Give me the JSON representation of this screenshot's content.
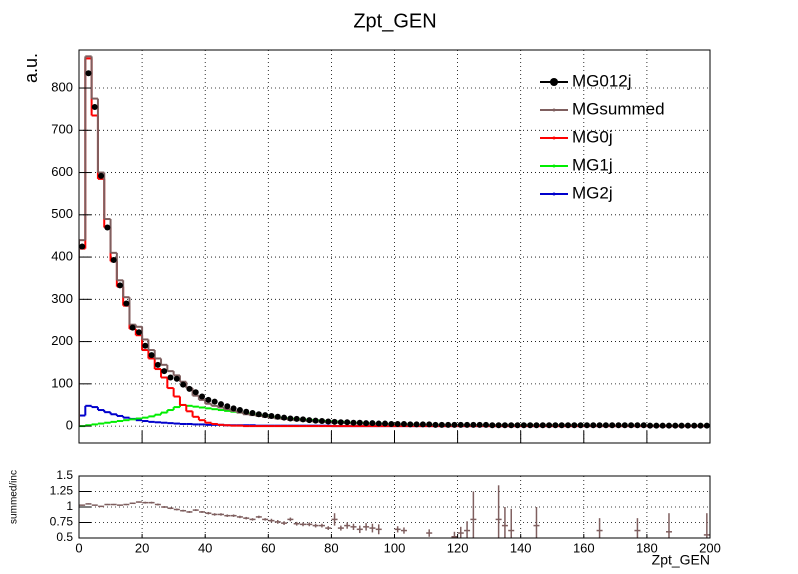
{
  "chart_data": [
    {
      "type": "histogram",
      "title": "Zpt_GEN",
      "y_label": "a.u.",
      "bins": [
        0,
        2,
        4,
        6,
        8,
        10,
        12,
        14,
        16,
        18,
        20,
        22,
        24,
        26,
        28,
        30,
        32,
        34,
        36,
        38,
        40,
        42,
        44,
        46,
        48,
        50,
        52,
        54,
        56,
        58,
        60,
        62,
        64,
        66,
        68,
        70,
        72,
        74,
        76,
        78,
        80,
        82,
        84,
        86,
        88,
        90,
        92,
        94,
        96,
        98,
        100,
        102,
        104,
        106,
        108,
        110,
        112,
        114,
        116,
        118,
        120,
        122,
        124,
        126,
        128,
        130,
        132,
        134,
        136,
        138,
        140,
        142,
        144,
        146,
        148,
        150,
        152,
        154,
        156,
        158,
        160,
        162,
        164,
        166,
        168,
        170,
        172,
        174,
        176,
        178,
        180,
        182,
        184,
        186,
        188,
        190,
        192,
        194,
        196,
        198,
        200
      ],
      "series": [
        {
          "name": "MG012j",
          "color": "#000000",
          "style": "points",
          "values": [
            425,
            835,
            755,
            592,
            470,
            393,
            333,
            290,
            233,
            222,
            190,
            168,
            145,
            130,
            115,
            112,
            98,
            88,
            80,
            70,
            62,
            58,
            52,
            47,
            42,
            38,
            34,
            31,
            28,
            26,
            24,
            22,
            20,
            18,
            17,
            16,
            14,
            13,
            12,
            11,
            10,
            9,
            9,
            8,
            8,
            7,
            7,
            6,
            6,
            5,
            5,
            5,
            4,
            4,
            4,
            4,
            3,
            3,
            3,
            3,
            3,
            3,
            3,
            3,
            3,
            2,
            2,
            2,
            2,
            2,
            2,
            2,
            2,
            2,
            2,
            2,
            2,
            2,
            2,
            2,
            2,
            2,
            2,
            2,
            2,
            2,
            2,
            2,
            2,
            2,
            1,
            1,
            1,
            1,
            1,
            1,
            1,
            1,
            1,
            1
          ]
        },
        {
          "name": "MGsummed",
          "color": "#7f5f5f",
          "style": "step",
          "values": [
            440,
            875,
            775,
            600,
            490,
            410,
            345,
            305,
            240,
            235,
            205,
            180,
            160,
            145,
            130,
            120,
            105,
            90,
            72,
            62,
            53,
            48,
            44,
            40,
            36,
            32,
            28,
            26,
            24,
            22,
            20,
            18,
            17,
            15,
            14,
            13,
            12,
            11,
            10,
            9,
            8,
            8,
            7,
            6,
            6,
            5,
            5,
            5,
            4,
            4,
            4,
            4,
            3,
            3,
            3,
            3,
            3,
            3,
            2,
            2,
            2,
            2,
            2,
            2,
            2,
            2,
            2,
            2,
            2,
            2,
            2,
            2,
            2,
            2,
            2,
            2,
            2,
            2,
            2,
            2,
            1,
            1,
            1,
            1,
            1,
            1,
            1,
            1,
            1,
            1,
            1,
            1,
            1,
            1,
            1,
            1,
            1,
            1,
            1,
            1
          ]
        },
        {
          "name": "MG0j",
          "color": "#ff0000",
          "style": "step",
          "values": [
            420,
            870,
            735,
            585,
            470,
            390,
            330,
            285,
            230,
            215,
            180,
            160,
            135,
            115,
            90,
            70,
            50,
            35,
            22,
            14,
            8,
            5,
            3,
            2,
            1,
            1,
            0,
            0,
            0,
            0,
            0,
            0,
            0,
            0,
            0,
            0,
            0,
            0,
            0,
            0,
            0,
            0,
            0,
            0,
            0,
            0,
            0,
            0,
            0,
            0,
            0,
            0,
            0,
            0,
            0,
            0,
            0,
            0,
            0,
            0,
            0,
            0,
            0,
            0,
            0,
            0,
            0,
            0,
            0,
            0,
            0,
            0,
            0,
            0,
            0,
            0,
            0,
            0,
            0,
            0,
            0,
            0,
            0,
            0,
            0,
            0,
            0,
            0,
            0,
            0,
            0,
            0,
            0,
            0,
            0,
            0,
            0,
            0,
            0,
            0
          ]
        },
        {
          "name": "MG1j",
          "color": "#00ee00",
          "style": "step",
          "values": [
            0,
            2,
            4,
            6,
            8,
            10,
            12,
            14,
            16,
            18,
            20,
            23,
            27,
            32,
            38,
            45,
            50,
            48,
            46,
            44,
            42,
            40,
            38,
            36,
            34,
            32,
            30,
            28,
            26,
            24,
            22,
            20,
            19,
            18,
            17,
            16,
            15,
            14,
            13,
            12,
            11,
            10,
            9,
            8,
            8,
            7,
            6,
            6,
            5,
            5,
            4,
            4,
            4,
            3,
            3,
            3,
            3,
            3,
            2,
            2,
            2,
            2,
            2,
            2,
            2,
            2,
            2,
            2,
            2,
            2,
            2,
            2,
            2,
            2,
            2,
            2,
            2,
            2,
            2,
            2,
            1,
            1,
            1,
            1,
            1,
            1,
            1,
            1,
            1,
            1,
            1,
            1,
            1,
            1,
            1,
            1,
            1,
            1,
            1,
            1
          ]
        },
        {
          "name": "MG2j",
          "color": "#0000cc",
          "style": "step",
          "values": [
            25,
            48,
            45,
            38,
            33,
            28,
            24,
            20,
            17,
            14,
            12,
            10,
            9,
            8,
            7,
            6,
            5,
            5,
            4,
            4,
            3,
            3,
            3,
            2,
            2,
            2,
            2,
            2,
            1,
            1,
            1,
            1,
            1,
            1,
            1,
            1,
            1,
            1,
            1,
            1,
            0,
            0,
            0,
            0,
            0,
            0,
            0,
            0,
            0,
            0,
            0,
            0,
            0,
            0,
            0,
            0,
            0,
            0,
            0,
            0,
            0,
            0,
            0,
            0,
            0,
            0,
            0,
            0,
            0,
            0,
            0,
            0,
            0,
            0,
            0,
            0,
            0,
            0,
            0,
            0,
            0,
            0,
            0,
            0,
            0,
            0,
            0,
            0,
            0,
            0,
            0,
            0,
            0,
            0,
            0,
            0,
            0,
            0,
            0,
            0
          ]
        }
      ],
      "xlim": [
        0,
        200
      ],
      "xticks": [
        0,
        20,
        40,
        60,
        80,
        100,
        120,
        140,
        160,
        180,
        200
      ],
      "ylim": [
        -40,
        890
      ],
      "yticks": [
        0,
        100,
        200,
        300,
        400,
        500,
        600,
        700,
        800
      ],
      "grid": true,
      "legend": "top-right"
    },
    {
      "type": "scatter",
      "y_label": "summed/inc",
      "x_label": "Zpt_GEN",
      "color": "#7f5f5f",
      "x": [
        1,
        3,
        5,
        7,
        9,
        11,
        13,
        15,
        17,
        19,
        21,
        23,
        25,
        27,
        29,
        31,
        33,
        35,
        37,
        39,
        41,
        43,
        45,
        47,
        49,
        51,
        53,
        55,
        57,
        59,
        61,
        63,
        65,
        67,
        69,
        71,
        73,
        75,
        77,
        79,
        81,
        83,
        85,
        87,
        89,
        91,
        93,
        95,
        101,
        103,
        111,
        119,
        121,
        123,
        125,
        133,
        135,
        137,
        145,
        165,
        177,
        187,
        199
      ],
      "values": [
        1.03,
        1.05,
        1.03,
        1.01,
        1.04,
        1.04,
        1.03,
        1.04,
        1.06,
        1.08,
        1.07,
        1.07,
        1.04,
        1.0,
        0.98,
        0.96,
        0.94,
        0.92,
        0.95,
        0.92,
        0.9,
        0.88,
        0.88,
        0.86,
        0.86,
        0.84,
        0.82,
        0.8,
        0.84,
        0.8,
        0.78,
        0.76,
        0.74,
        0.8,
        0.73,
        0.72,
        0.72,
        0.7,
        0.7,
        0.66,
        0.8,
        0.66,
        0.7,
        0.68,
        0.64,
        0.68,
        0.66,
        0.64,
        0.64,
        0.62,
        0.58,
        0.52,
        0.58,
        0.62,
        0.8,
        0.8,
        0.7,
        0.62,
        0.7,
        0.62,
        0.62,
        0.6,
        0.55
      ],
      "errors": [
        0.01,
        0.01,
        0.01,
        0.01,
        0.01,
        0.01,
        0.01,
        0.01,
        0.01,
        0.01,
        0.015,
        0.015,
        0.015,
        0.015,
        0.015,
        0.015,
        0.015,
        0.015,
        0.015,
        0.015,
        0.02,
        0.02,
        0.02,
        0.02,
        0.02,
        0.02,
        0.02,
        0.02,
        0.02,
        0.02,
        0.03,
        0.03,
        0.03,
        0.03,
        0.03,
        0.03,
        0.03,
        0.03,
        0.03,
        0.03,
        0.1,
        0.04,
        0.05,
        0.05,
        0.06,
        0.06,
        0.07,
        0.08,
        0.05,
        0.05,
        0.06,
        0.08,
        0.1,
        0.15,
        0.45,
        0.55,
        0.3,
        0.35,
        0.3,
        0.2,
        0.2,
        0.3,
        0.35
      ],
      "xlim": [
        0,
        200
      ],
      "xticks": [
        0,
        20,
        40,
        60,
        80,
        100,
        120,
        140,
        160,
        180,
        200
      ],
      "ylim": [
        0.5,
        1.5
      ],
      "yticks": [
        0.5,
        0.75,
        1,
        1.25,
        1.5
      ],
      "grid": true
    }
  ]
}
